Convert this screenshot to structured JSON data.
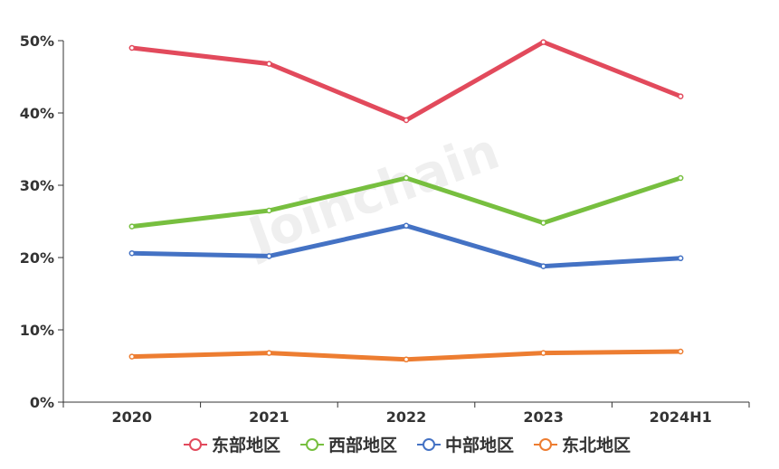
{
  "chart_data": {
    "type": "line",
    "categories": [
      "2020",
      "2021",
      "2022",
      "2023",
      "2024H1"
    ],
    "y_ticks": [
      "0%",
      "10%",
      "20%",
      "30%",
      "40%",
      "50%"
    ],
    "ylim": [
      0,
      50
    ],
    "y_unit": "%",
    "grid": false,
    "legend_position": "bottom-center",
    "series": [
      {
        "name": "东部地区",
        "color": "#e24a5c",
        "values": [
          49.0,
          46.8,
          39.0,
          49.8,
          42.3
        ]
      },
      {
        "name": "西部地区",
        "color": "#77bf3f",
        "values": [
          24.3,
          26.5,
          31.0,
          24.8,
          31.0
        ]
      },
      {
        "name": "中部地区",
        "color": "#4472c4",
        "values": [
          20.6,
          20.2,
          24.4,
          18.8,
          19.9
        ]
      },
      {
        "name": "东北地区",
        "color": "#ed7d31",
        "values": [
          6.3,
          6.8,
          5.9,
          6.8,
          7.0
        ]
      }
    ]
  },
  "watermark": "Joinchain"
}
